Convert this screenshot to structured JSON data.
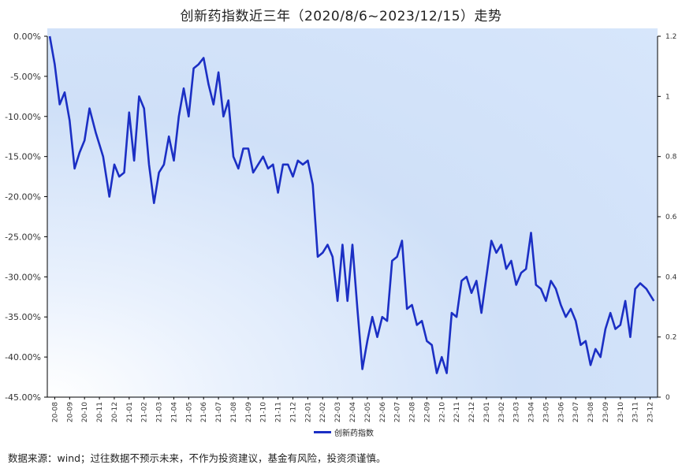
{
  "title": "创新药指数近三年（2020/8/6~2023/12/15）走势",
  "footnote": "数据来源：wind；过往数据不预示未来，不作为投资建议，基金有风险，投资须谨慎。",
  "colors": {
    "series": "#1b2fc4",
    "axis": "#000000"
  },
  "chart_data": {
    "type": "line",
    "title": "创新药指数近三年（2020/8/6~2023/12/15）走势",
    "legend": "bottom-center",
    "grid": false,
    "y_left": {
      "lim": [
        -45,
        0
      ],
      "ticks": [
        0,
        -5,
        -10,
        -15,
        -20,
        -25,
        -30,
        -35,
        -40,
        -45
      ],
      "tick_labels": [
        "0.00%",
        "-5.00%",
        "-10.00%",
        "-15.00%",
        "-20.00%",
        "-25.00%",
        "-30.00%",
        "-35.00%",
        "-40.00%",
        "-45.00%"
      ]
    },
    "y_right": {
      "lim": [
        0,
        1.2
      ],
      "ticks": [
        1.2,
        1,
        0.8,
        0.6,
        0.4,
        0.2,
        0
      ],
      "tick_labels": [
        "1.2",
        "1",
        "0.8",
        "0.6",
        "0.4",
        "0.2",
        "0"
      ]
    },
    "x_tick_labels": [
      "20-08",
      "20-09",
      "20-10",
      "20-11",
      "20-12",
      "21-01",
      "21-02",
      "21-03",
      "21-04",
      "21-05",
      "21-06",
      "21-07",
      "21-08",
      "21-09",
      "21-10",
      "21-11",
      "21-12",
      "22-01",
      "22-02",
      "22-03",
      "22-04",
      "22-05",
      "22-06",
      "22-07",
      "22-08",
      "22-09",
      "22-10",
      "22-11",
      "22-12",
      "23-01",
      "23-02",
      "23-03",
      "23-04",
      "23-05",
      "23-06",
      "23-07",
      "23-08",
      "23-09",
      "23-10",
      "23-11",
      "23-12"
    ],
    "series": [
      {
        "name": "创新药指数",
        "x": [
          "20-08",
          "20-08",
          "20-08",
          "20-09",
          "20-09",
          "20-09",
          "20-10",
          "20-10",
          "20-10",
          "20-11",
          "20-11",
          "20-12",
          "20-12",
          "20-12",
          "21-01",
          "21-01",
          "21-01",
          "21-02",
          "21-02",
          "21-02",
          "21-03",
          "21-03",
          "21-03",
          "21-04",
          "21-04",
          "21-04",
          "21-05",
          "21-05",
          "21-05",
          "21-06",
          "21-06",
          "21-06",
          "21-07",
          "21-07",
          "21-07",
          "21-08",
          "21-08",
          "21-08",
          "21-09",
          "21-09",
          "21-09",
          "21-10",
          "21-10",
          "21-10",
          "21-11",
          "21-11",
          "21-11",
          "21-12",
          "21-12",
          "21-12",
          "22-01",
          "22-01",
          "22-01",
          "22-02",
          "22-02",
          "22-02",
          "22-03",
          "22-03",
          "22-03",
          "22-04",
          "22-04",
          "22-04",
          "22-05",
          "22-05",
          "22-05",
          "22-06",
          "22-06",
          "22-06",
          "22-07",
          "22-07",
          "22-07",
          "22-08",
          "22-08",
          "22-08",
          "22-09",
          "22-09",
          "22-09",
          "22-10",
          "22-10",
          "22-10",
          "22-11",
          "22-11",
          "22-11",
          "22-12",
          "22-12",
          "22-12",
          "23-01",
          "23-01",
          "23-01",
          "23-02",
          "23-02",
          "23-02",
          "23-03",
          "23-03",
          "23-03",
          "23-04",
          "23-04",
          "23-04",
          "23-05",
          "23-05",
          "23-05",
          "23-06",
          "23-06",
          "23-06",
          "23-07",
          "23-07",
          "23-07",
          "23-08",
          "23-08",
          "23-08",
          "23-09",
          "23-09",
          "23-09",
          "23-10",
          "23-10",
          "23-10",
          "23-11",
          "23-11",
          "23-11",
          "23-12",
          "23-12"
        ],
        "values": [
          0,
          -3.5,
          -8.5,
          -7,
          -10.5,
          -16.5,
          -14.5,
          -13,
          -9,
          -12,
          -15,
          -20,
          -16,
          -17.5,
          -17,
          -9.5,
          -15.5,
          -7.5,
          -9,
          -16,
          -20.8,
          -17,
          -16,
          -12.5,
          -15.5,
          -10,
          -6.5,
          -10,
          -4,
          -3.5,
          -2.7,
          -6,
          -8.5,
          -4.5,
          -10,
          -8,
          -15,
          -16.5,
          -14,
          -14,
          -17,
          -16,
          -15,
          -16.5,
          -16,
          -19.5,
          -16,
          -16,
          -17.5,
          -15.5,
          -16,
          -15.5,
          -18.5,
          -27.5,
          -27,
          -26,
          -27.5,
          -33,
          -26,
          -33,
          -26,
          -34,
          -41.5,
          -38,
          -35,
          -37.5,
          -35,
          -35.5,
          -28,
          -27.5,
          -25.5,
          -34,
          -33.5,
          -36,
          -35.5,
          -38,
          -38.5,
          -42,
          -40,
          -42,
          -34.5,
          -35,
          -30.5,
          -30,
          -32,
          -30.5,
          -34.5,
          -30,
          -25.5,
          -27,
          -26,
          -29,
          -28,
          -31,
          -29.5,
          -29,
          -24.5,
          -31,
          -31.5,
          -33,
          -30.5,
          -31.5,
          -33.5,
          -35,
          -34,
          -35.5,
          -38.5,
          -38,
          -41,
          -39,
          -40,
          -36.5,
          -34.5,
          -36.5,
          -36,
          -33,
          -37.5,
          -31.5,
          -30.8,
          -31.5,
          -33
        ]
      }
    ]
  }
}
